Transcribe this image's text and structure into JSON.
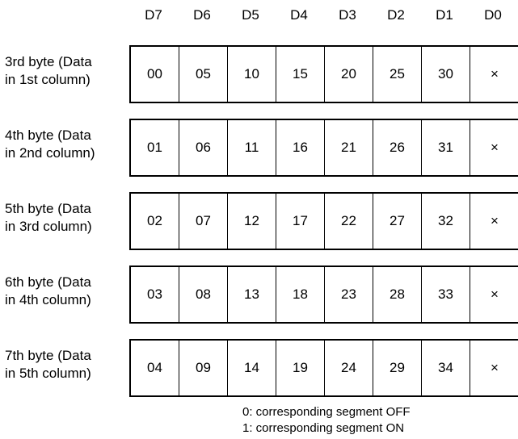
{
  "bits": [
    "D7",
    "D6",
    "D5",
    "D4",
    "D3",
    "D2",
    "D1",
    "D0"
  ],
  "rows": [
    {
      "label_line1": "3rd byte (Data",
      "label_line2": "in 1st column)",
      "cells": [
        "00",
        "05",
        "10",
        "15",
        "20",
        "25",
        "30",
        "×"
      ]
    },
    {
      "label_line1": "4th byte (Data",
      "label_line2": "in 2nd column)",
      "cells": [
        "01",
        "06",
        "11",
        "16",
        "21",
        "26",
        "31",
        "×"
      ]
    },
    {
      "label_line1": "5th byte (Data",
      "label_line2": "in 3rd column)",
      "cells": [
        "02",
        "07",
        "12",
        "17",
        "22",
        "27",
        "32",
        "×"
      ]
    },
    {
      "label_line1": "6th byte (Data",
      "label_line2": "in 4th column)",
      "cells": [
        "03",
        "08",
        "13",
        "18",
        "23",
        "28",
        "33",
        "×"
      ]
    },
    {
      "label_line1": "7th byte (Data",
      "label_line2": "in 5th column)",
      "cells": [
        "04",
        "09",
        "14",
        "19",
        "24",
        "29",
        "34",
        "×"
      ]
    }
  ],
  "legend": {
    "off": "0: corresponding segment OFF",
    "on": "1: corresponding segment ON"
  }
}
